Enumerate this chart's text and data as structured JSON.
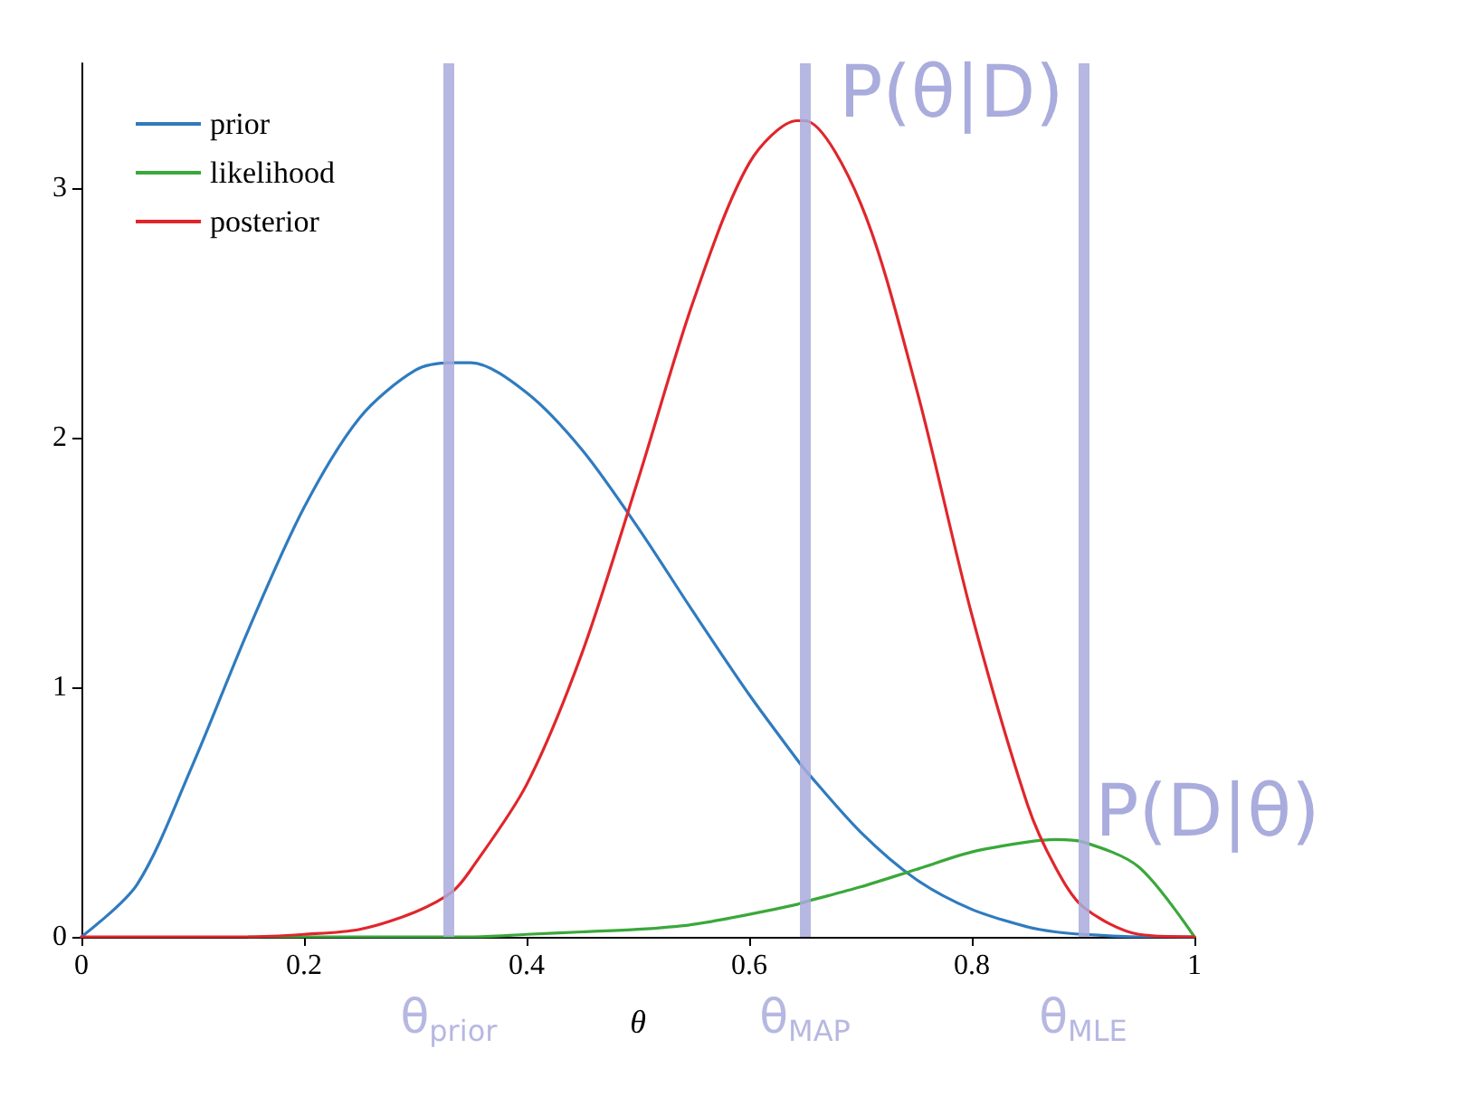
{
  "chart_data": {
    "type": "line",
    "xlabel": "θ",
    "x": [
      0,
      0.05,
      0.1,
      0.15,
      0.2,
      0.25,
      0.3,
      0.333,
      0.35,
      0.4,
      0.45,
      0.5,
      0.55,
      0.6,
      0.643,
      0.65,
      0.7,
      0.75,
      0.8,
      0.85,
      0.875,
      0.9,
      0.95,
      1
    ],
    "series": [
      {
        "name": "prior",
        "color": "#2f7bbf",
        "values": [
          0,
          0.21,
          0.69,
          1.23,
          1.72,
          2.08,
          2.27,
          2.3,
          2.3,
          2.18,
          1.95,
          1.64,
          1.3,
          0.97,
          0.71,
          0.67,
          0.42,
          0.23,
          0.11,
          0.04,
          0.02,
          0.01,
          0,
          0
        ]
      },
      {
        "name": "likelihood",
        "color": "#3aa83a",
        "values": [
          null,
          null,
          null,
          0,
          0,
          0,
          0,
          0,
          0,
          0.01,
          0.02,
          0.03,
          0.05,
          0.09,
          0.13,
          0.14,
          0.2,
          0.27,
          0.34,
          0.38,
          0.39,
          0.38,
          0.28,
          0
        ]
      },
      {
        "name": "posterior",
        "color": "#e0262b",
        "values": [
          0,
          0,
          0,
          0,
          0.01,
          0.03,
          0.1,
          0.18,
          0.27,
          0.61,
          1.14,
          1.83,
          2.55,
          3.1,
          3.27,
          3.27,
          2.94,
          2.2,
          1.29,
          0.53,
          0.28,
          0.12,
          0.01,
          0
        ]
      }
    ],
    "xlim": [
      0,
      1
    ],
    "xticks": [
      0,
      0.2,
      0.4,
      0.6,
      0.8,
      1
    ],
    "ylim": [
      0,
      3.5
    ],
    "yticks": [
      0,
      1,
      2,
      3
    ],
    "grid": false,
    "legend": "top left",
    "marker": "none",
    "line_style": "solid",
    "ref_lines": [
      {
        "axis": "x",
        "value": 0.33,
        "label": "θ$_{prior}$",
        "color": "#a9acdc"
      },
      {
        "axis": "x",
        "value": 0.65,
        "label": "θ$_{MAP}$",
        "color": "#a9acdc"
      },
      {
        "axis": "x",
        "value": 0.9,
        "label": "θ$_{MLE}$",
        "color": "#a9acdc"
      }
    ],
    "annotations": [
      {
        "text": "P(θ|D)",
        "x": 0.645,
        "y": 3.27
      },
      {
        "text": "P(D|θ)",
        "x": 0.875,
        "y": 0.39
      }
    ]
  }
}
